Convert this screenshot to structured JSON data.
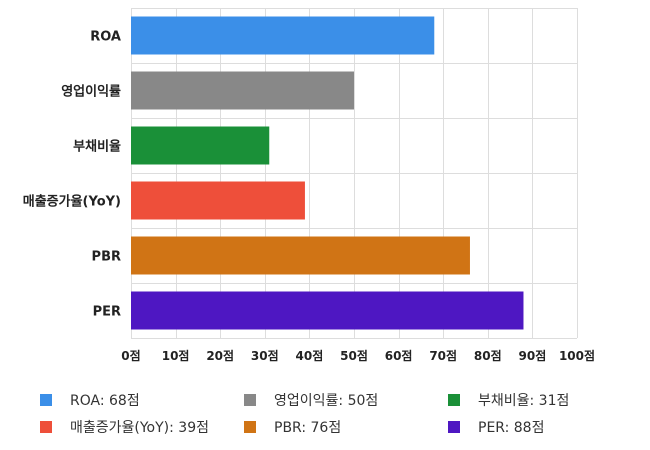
{
  "chart_data": {
    "type": "bar",
    "orientation": "horizontal",
    "categories": [
      "ROA",
      "영업이익률",
      "부채비율",
      "매출증가율(YoY)",
      "PBR",
      "PER"
    ],
    "values": [
      68,
      50,
      31,
      39,
      76,
      88
    ],
    "colors": [
      "#3b8fe8",
      "#888888",
      "#1a9038",
      "#ee4f3a",
      "#d07415",
      "#4e17c2"
    ],
    "x_ticks": [
      "0점",
      "10점",
      "20점",
      "30점",
      "40점",
      "50점",
      "60점",
      "70점",
      "80점",
      "90점",
      "100점"
    ],
    "xlim": [
      0,
      100
    ],
    "grid": true,
    "legend_position": "bottom",
    "legend": [
      "ROA: 68점",
      "영업이익률: 50점",
      "부채비율: 31점",
      "매출증가율(YoY): 39점",
      "PBR: 76점",
      "PER: 88점"
    ]
  }
}
